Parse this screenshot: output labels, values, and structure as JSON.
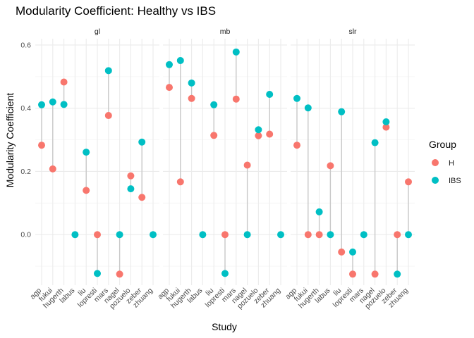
{
  "chart_data": {
    "type": "scatter",
    "title": "Modularity Coefficient: Healthy vs IBS",
    "xlabel": "Study",
    "ylabel": "Modularity Coefficient",
    "ylim": [
      -0.16,
      0.62
    ],
    "yticks": [
      0.0,
      0.2,
      0.4,
      0.6
    ],
    "ytick_labels": [
      "0.0",
      "0.2",
      "0.4",
      "0.6"
    ],
    "categories": [
      "agp",
      "fukui",
      "hugerth",
      "labus",
      "liu",
      "lopresti",
      "mars",
      "nagel",
      "pozuelo",
      "zeber",
      "zhuang"
    ],
    "facets": [
      "gl",
      "mb",
      "slr"
    ],
    "grid": true,
    "legend": {
      "title": "Group",
      "position": "right",
      "entries": [
        {
          "name": "H",
          "color": "#F8766D"
        },
        {
          "name": "IBS",
          "color": "#00BFC4"
        }
      ]
    },
    "panels": [
      {
        "facet": "gl",
        "H": [
          0.283,
          0.208,
          0.483,
          null,
          0.14,
          0.0,
          0.377,
          -0.125,
          0.186,
          0.118,
          null
        ],
        "IBS": [
          0.411,
          0.42,
          0.412,
          0.0,
          0.261,
          -0.123,
          0.519,
          0.0,
          0.145,
          0.293,
          0.0
        ]
      },
      {
        "facet": "mb",
        "H": [
          0.466,
          0.167,
          0.431,
          null,
          0.314,
          0.0,
          0.429,
          0.22,
          0.313,
          0.318,
          null
        ],
        "IBS": [
          0.538,
          0.551,
          0.48,
          0.0,
          0.411,
          -0.123,
          0.578,
          0.0,
          0.332,
          0.444,
          0.0
        ]
      },
      {
        "facet": "slr",
        "H": [
          0.283,
          0.0,
          0.0,
          0.218,
          -0.055,
          -0.125,
          null,
          -0.125,
          0.34,
          0.0,
          0.167
        ],
        "IBS": [
          0.431,
          0.401,
          0.072,
          0.0,
          0.389,
          -0.055,
          0.0,
          0.291,
          0.357,
          -0.125,
          0.0
        ]
      }
    ]
  }
}
